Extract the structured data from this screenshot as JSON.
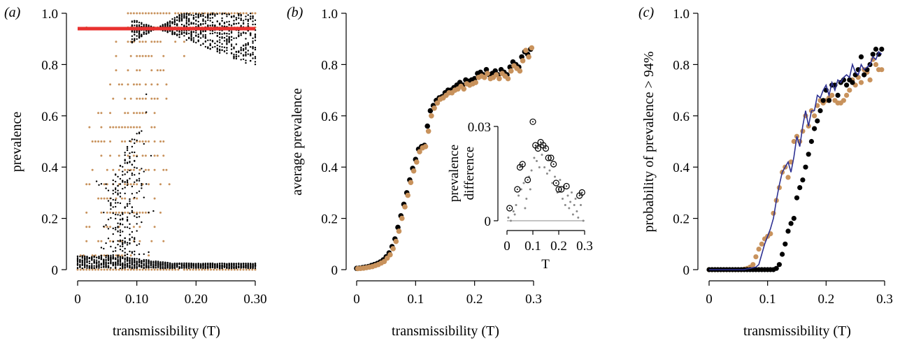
{
  "colors": {
    "black": "#000000",
    "tan": "#c8925c",
    "red": "#e8312f",
    "blue": "#2e3192",
    "gray": "#8a8a8a"
  },
  "chart_data": [
    {
      "panel": "(a)",
      "type": "scatter",
      "xlabel": "transmissibility (T)",
      "ylabel": "prevalence",
      "xlim": [
        0,
        0.3
      ],
      "ylim": [
        0,
        1.0
      ],
      "xticks": [
        "0",
        "0.10",
        "0.20",
        "0.30"
      ],
      "yticks": [
        "0",
        "0.2",
        "0.4",
        "0.6",
        "0.8",
        "1.0"
      ],
      "threshold_line": {
        "y": 0.94,
        "color": "#e8312f"
      },
      "series": [
        {
          "color": "#000000",
          "description_of_points": "dense vertical columns of stochastic outcomes"
        },
        {
          "color": "#c8925c",
          "description_of_points": "discrete prevalence levels"
        }
      ]
    },
    {
      "panel": "(b)",
      "type": "scatter",
      "xlabel": "transmissibility (T)",
      "ylabel": "average prevalence",
      "xlim": [
        0,
        0.3
      ],
      "ylim": [
        0,
        1.0
      ],
      "xticks": [
        "0",
        "0.1",
        "0.2",
        "0.3"
      ],
      "yticks": [
        "0",
        "0.2",
        "0.4",
        "0.6",
        "0.8",
        "1.0"
      ],
      "x": [
        0.0,
        0.005,
        0.01,
        0.015,
        0.02,
        0.025,
        0.03,
        0.035,
        0.04,
        0.045,
        0.05,
        0.055,
        0.06,
        0.065,
        0.07,
        0.075,
        0.08,
        0.085,
        0.09,
        0.095,
        0.1,
        0.105,
        0.11,
        0.115,
        0.12,
        0.125,
        0.13,
        0.135,
        0.14,
        0.145,
        0.15,
        0.155,
        0.16,
        0.165,
        0.17,
        0.175,
        0.18,
        0.185,
        0.19,
        0.195,
        0.2,
        0.205,
        0.21,
        0.215,
        0.22,
        0.225,
        0.23,
        0.235,
        0.24,
        0.245,
        0.25,
        0.255,
        0.26,
        0.265,
        0.27,
        0.275,
        0.28,
        0.285,
        0.29,
        0.295
      ],
      "series": [
        {
          "color": "#000000",
          "values": [
            0.005,
            0.006,
            0.008,
            0.01,
            0.012,
            0.016,
            0.02,
            0.024,
            0.03,
            0.038,
            0.05,
            0.065,
            0.09,
            0.12,
            0.165,
            0.21,
            0.255,
            0.3,
            0.35,
            0.395,
            0.43,
            0.47,
            0.48,
            0.485,
            0.56,
            0.62,
            0.64,
            0.66,
            0.67,
            0.675,
            0.69,
            0.7,
            0.7,
            0.71,
            0.72,
            0.73,
            0.72,
            0.74,
            0.735,
            0.74,
            0.745,
            0.765,
            0.77,
            0.76,
            0.78,
            0.76,
            0.765,
            0.775,
            0.76,
            0.78,
            0.77,
            0.76,
            0.79,
            0.81,
            0.8,
            0.79,
            0.83,
            0.85,
            0.84,
            0.86
          ]
        },
        {
          "color": "#c8925c",
          "values": [
            0.004,
            0.005,
            0.006,
            0.008,
            0.01,
            0.012,
            0.016,
            0.02,
            0.026,
            0.032,
            0.045,
            0.058,
            0.082,
            0.11,
            0.15,
            0.2,
            0.245,
            0.29,
            0.34,
            0.385,
            0.42,
            0.46,
            0.475,
            0.48,
            0.54,
            0.6,
            0.63,
            0.65,
            0.665,
            0.67,
            0.68,
            0.69,
            0.69,
            0.7,
            0.705,
            0.715,
            0.705,
            0.725,
            0.72,
            0.725,
            0.73,
            0.75,
            0.755,
            0.75,
            0.765,
            0.745,
            0.75,
            0.76,
            0.745,
            0.765,
            0.755,
            0.745,
            0.775,
            0.795,
            0.785,
            0.775,
            0.815,
            0.855,
            0.83,
            0.865
          ]
        }
      ],
      "inset": {
        "xlabel": "T",
        "ylabel": "prevalence difference",
        "xlim": [
          0,
          0.3
        ],
        "ylim": [
          0,
          0.03
        ],
        "xticks": [
          "0",
          "0.1",
          "0.2",
          "0.3"
        ],
        "yticks": [
          "0",
          "0.03"
        ],
        "zero_line": true,
        "circles": {
          "x": [
            0.01,
            0.04,
            0.05,
            0.06,
            0.08,
            0.1,
            0.11,
            0.12,
            0.13,
            0.14,
            0.15,
            0.16,
            0.17,
            0.18,
            0.19,
            0.2,
            0.21,
            0.23,
            0.28,
            0.29
          ],
          "values": [
            0.004,
            0.01,
            0.017,
            0.018,
            0.013,
            0.0315,
            0.024,
            0.023,
            0.025,
            0.024,
            0.023,
            0.02,
            0.02,
            0.018,
            0.012,
            0.01,
            0.01,
            0.011,
            0.008,
            0.009
          ]
        },
        "dots": {
          "x": [
            0.005,
            0.015,
            0.025,
            0.03,
            0.035,
            0.045,
            0.055,
            0.065,
            0.07,
            0.075,
            0.085,
            0.09,
            0.095,
            0.105,
            0.115,
            0.125,
            0.135,
            0.145,
            0.155,
            0.165,
            0.175,
            0.185,
            0.195,
            0.205,
            0.215,
            0.22,
            0.225,
            0.235,
            0.24,
            0.245,
            0.25,
            0.255,
            0.26,
            0.265,
            0.27,
            0.275,
            0.285,
            0.295
          ],
          "values": [
            0.001,
            0.0,
            0.003,
            0.002,
            0.005,
            0.008,
            0.01,
            0.012,
            0.004,
            0.007,
            0.014,
            0.01,
            0.016,
            0.02,
            0.019,
            0.017,
            0.021,
            0.017,
            0.015,
            0.016,
            0.012,
            0.014,
            0.009,
            0.013,
            0.007,
            0.011,
            0.005,
            0.008,
            0.004,
            0.006,
            0.009,
            0.002,
            0.005,
            0.007,
            0.003,
            0.001,
            0.005,
            0.0
          ]
        }
      }
    },
    {
      "panel": "(c)",
      "type": "scatter",
      "xlabel": "transmissibility (T)",
      "ylabel": "probability of prevalence > 94%",
      "xlim": [
        0,
        0.3
      ],
      "ylim": [
        0,
        1.0
      ],
      "xticks": [
        "0",
        "0.1",
        "0.2",
        "0.3"
      ],
      "yticks": [
        "0",
        "0.2",
        "0.4",
        "0.6",
        "0.8",
        "1.0"
      ],
      "x": [
        0.0,
        0.005,
        0.01,
        0.015,
        0.02,
        0.025,
        0.03,
        0.035,
        0.04,
        0.045,
        0.05,
        0.055,
        0.06,
        0.065,
        0.07,
        0.075,
        0.08,
        0.085,
        0.09,
        0.095,
        0.1,
        0.105,
        0.11,
        0.115,
        0.12,
        0.125,
        0.13,
        0.135,
        0.14,
        0.145,
        0.15,
        0.155,
        0.16,
        0.165,
        0.17,
        0.175,
        0.18,
        0.185,
        0.19,
        0.195,
        0.2,
        0.205,
        0.21,
        0.215,
        0.22,
        0.225,
        0.23,
        0.235,
        0.24,
        0.245,
        0.25,
        0.255,
        0.26,
        0.265,
        0.27,
        0.275,
        0.28,
        0.285,
        0.29,
        0.295
      ],
      "series": [
        {
          "color": "#000000",
          "marker": "dot",
          "values": [
            0,
            0,
            0,
            0,
            0,
            0,
            0,
            0,
            0,
            0,
            0,
            0,
            0,
            0,
            0,
            0,
            0,
            0,
            0,
            0,
            0,
            0,
            0,
            0.005,
            0.02,
            0.06,
            0.1,
            0.15,
            0.18,
            0.2,
            0.28,
            0.32,
            0.35,
            0.4,
            0.45,
            0.5,
            0.55,
            0.58,
            0.62,
            0.66,
            0.7,
            0.66,
            0.72,
            0.72,
            0.68,
            0.73,
            0.74,
            0.72,
            0.74,
            0.73,
            0.76,
            0.78,
            0.83,
            0.76,
            0.78,
            0.8,
            0.84,
            0.86,
            0.84,
            0.86
          ]
        },
        {
          "color": "#c8925c",
          "marker": "dot",
          "values": [
            0,
            0,
            0,
            0,
            0,
            0,
            0,
            0,
            0,
            0,
            0,
            0,
            0.002,
            0.005,
            0.01,
            0.02,
            0.05,
            0.08,
            0.1,
            0.12,
            0.13,
            0.14,
            0.22,
            0.27,
            0.32,
            0.38,
            0.4,
            0.36,
            0.42,
            0.5,
            0.52,
            0.5,
            0.54,
            0.6,
            0.56,
            0.62,
            0.6,
            0.64,
            0.66,
            0.65,
            0.66,
            0.67,
            0.68,
            0.66,
            0.65,
            0.65,
            0.66,
            0.68,
            0.7,
            0.74,
            0.72,
            0.75,
            0.73,
            0.78,
            0.77,
            0.74,
            0.82,
            0.8,
            0.78,
            0.78
          ]
        },
        {
          "color": "#2e3192",
          "marker": "line",
          "values": [
            0,
            0,
            0,
            0,
            0,
            0,
            0,
            0,
            0,
            0,
            0,
            0,
            0,
            0.003,
            0.005,
            0.008,
            0.01,
            0.02,
            0.06,
            0.1,
            0.13,
            0.16,
            0.2,
            0.27,
            0.33,
            0.38,
            0.4,
            0.42,
            0.38,
            0.44,
            0.52,
            0.48,
            0.56,
            0.62,
            0.56,
            0.62,
            0.62,
            0.68,
            0.67,
            0.7,
            0.72,
            0.68,
            0.73,
            0.7,
            0.74,
            0.73,
            0.75,
            0.76,
            0.75,
            0.8,
            0.77,
            0.76,
            0.8,
            0.78,
            0.79,
            0.8,
            0.83,
            0.82,
            0.85,
            0.84
          ]
        }
      ]
    }
  ]
}
